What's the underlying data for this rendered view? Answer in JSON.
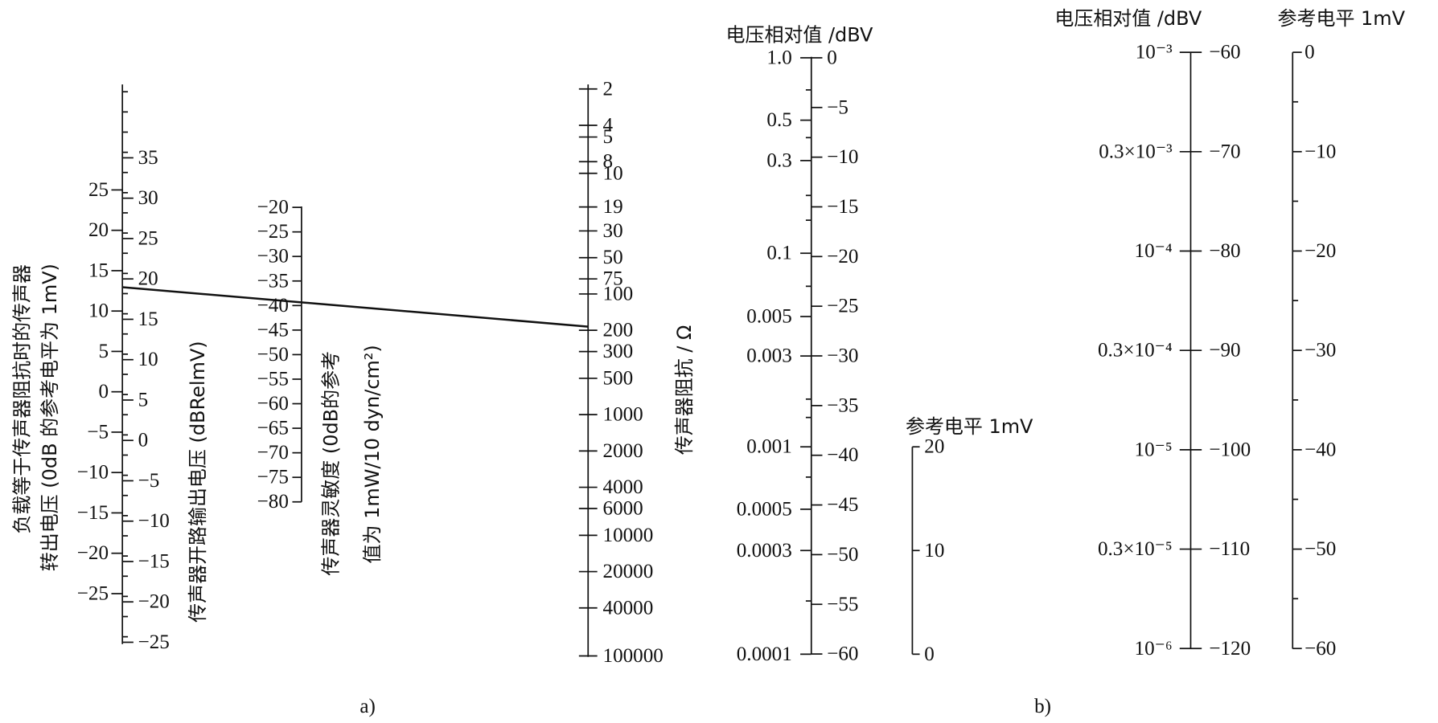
{
  "panel_a": {
    "caption": "a)",
    "output_voltage_scale": {
      "title_lines": [
        "负载等于传声器阻抗时的传声器",
        "转出电压 (0dB 的参考电平为 1mV)"
      ],
      "left_ticks": [
        "25",
        "20",
        "15",
        "10",
        "5",
        "0",
        "−5",
        "−10",
        "−15",
        "−20",
        "−25"
      ],
      "right_ticks": [
        "35",
        "30",
        "25",
        "20",
        "15",
        "10",
        "5",
        "0",
        "−5",
        "−10",
        "−15",
        "−20",
        "−25"
      ],
      "right_title": "传声器开路输出电压 (dBRelmV)"
    },
    "sensitivity_scale": {
      "title_lines": [
        "传声器灵敏度 (0dB的参考",
        "值为 1mW/10 dyn/cm²)"
      ],
      "ticks": [
        "−20",
        "−25",
        "−30",
        "−35",
        "−40",
        "−45",
        "−50",
        "−55",
        "−60",
        "−65",
        "−70",
        "−75",
        "−80"
      ]
    },
    "impedance_scale": {
      "title": "传声器阻抗 / Ω",
      "ticks": [
        "2",
        "4",
        "5",
        "8",
        "10",
        "19",
        "30",
        "50",
        "75",
        "100",
        "200",
        "300",
        "500",
        "1000",
        "2000",
        "4000",
        "6000",
        "10000",
        "20000",
        "40000",
        "100000"
      ]
    }
  },
  "panel_b": {
    "caption": "b)",
    "scale_1": {
      "title": "电压相对值 /dBV",
      "left_ticks": [
        "1.0",
        "0.5",
        "0.3",
        "0.1",
        "0.005",
        "0.003",
        "0.001",
        "0.0005",
        "0.0003",
        "0.0001"
      ],
      "right_ticks": [
        "0",
        "−5",
        "−10",
        "−15",
        "−20",
        "−25",
        "−30",
        "−35",
        "−40",
        "−45",
        "−50",
        "−55",
        "−60"
      ]
    },
    "reference_scale": {
      "title": "参考电平 1mV",
      "ticks": [
        "20",
        "10",
        "0"
      ]
    },
    "scale_2": {
      "title": "电压相对值 /dBV",
      "left_ticks": [
        "10⁻³",
        "0.3×10⁻³",
        "10⁻⁴",
        "0.3×10⁻⁴",
        "10⁻⁵",
        "0.3×10⁻⁵",
        "10⁻⁶"
      ],
      "right_ticks": [
        "−60",
        "−70",
        "−80",
        "−90",
        "−100",
        "−110",
        "−120"
      ]
    },
    "scale_3": {
      "title": "参考电平 1mV",
      "ticks": [
        "0",
        "−10",
        "−20",
        "−30",
        "−40",
        "−50",
        "−60"
      ]
    }
  }
}
